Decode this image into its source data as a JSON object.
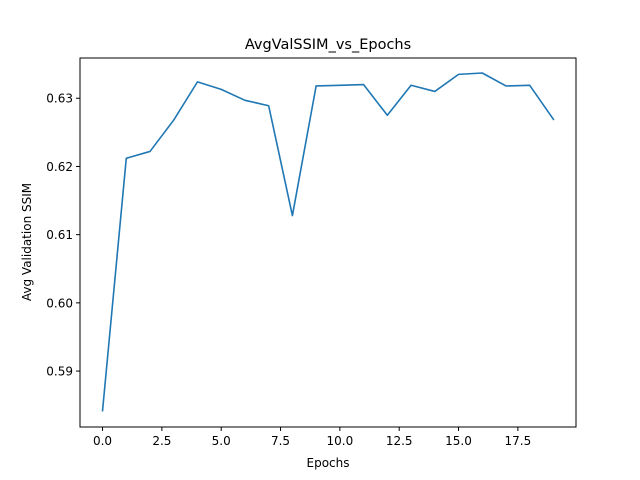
{
  "chart_data": {
    "type": "line",
    "title": "AvgValSSIM_vs_Epochs",
    "xlabel": "Epochs",
    "ylabel": "Avg Validation SSIM",
    "xlim": [
      -0.95,
      19.95
    ],
    "ylim": [
      0.5818,
      0.6359
    ],
    "xticks": [
      0.0,
      2.5,
      5.0,
      7.5,
      10.0,
      12.5,
      15.0,
      17.5
    ],
    "xtick_labels": [
      "0.0",
      "2.5",
      "5.0",
      "7.5",
      "10.0",
      "12.5",
      "15.0",
      "17.5"
    ],
    "yticks": [
      0.59,
      0.6,
      0.61,
      0.62,
      0.63
    ],
    "ytick_labels": [
      "0.59",
      "0.60",
      "0.61",
      "0.62",
      "0.63"
    ],
    "grid": false,
    "legend": "none",
    "series": [
      {
        "color": "#1f77b4",
        "x": [
          0,
          1,
          2,
          3,
          4,
          5,
          6,
          7,
          8,
          9,
          10,
          11,
          12,
          13,
          14,
          15,
          16,
          17,
          18,
          19
        ],
        "y": [
          0.5842,
          0.6212,
          0.6222,
          0.6268,
          0.6324,
          0.6313,
          0.6297,
          0.6289,
          0.6128,
          0.6318,
          0.6319,
          0.632,
          0.6275,
          0.6319,
          0.631,
          0.6335,
          0.6337,
          0.6318,
          0.6319,
          0.6269
        ]
      }
    ]
  }
}
